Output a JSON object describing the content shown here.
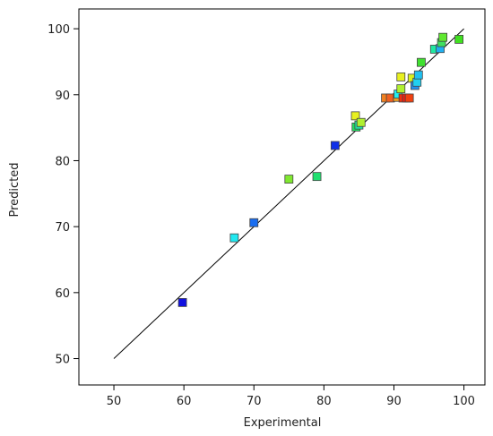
{
  "chart_data": {
    "type": "scatter",
    "xlabel": "Experimental",
    "ylabel": "Predicted",
    "xlim": [
      45,
      103
    ],
    "ylim": [
      46,
      103
    ],
    "x_ticks": [
      "50",
      "60",
      "70",
      "80",
      "90",
      "100"
    ],
    "y_ticks": [
      "50",
      "60",
      "70",
      "80",
      "90",
      "100"
    ],
    "grid": false,
    "legend": "none",
    "reference_line": {
      "from": [
        50,
        50
      ],
      "to": [
        100,
        100
      ],
      "color": "#000000"
    },
    "marker": "square",
    "marker_stroke": "#444444",
    "points": [
      {
        "x": 59.8,
        "y": 58.5,
        "color": "#1010e0"
      },
      {
        "x": 67.2,
        "y": 68.3,
        "color": "#20e8f0"
      },
      {
        "x": 70.0,
        "y": 70.6,
        "color": "#1a6ef0"
      },
      {
        "x": 75.0,
        "y": 77.2,
        "color": "#80e830"
      },
      {
        "x": 79.0,
        "y": 77.6,
        "color": "#20e070"
      },
      {
        "x": 81.6,
        "y": 82.3,
        "color": "#1030e8"
      },
      {
        "x": 84.5,
        "y": 86.8,
        "color": "#e8f020"
      },
      {
        "x": 84.6,
        "y": 85.1,
        "color": "#20e060"
      },
      {
        "x": 85.0,
        "y": 85.4,
        "color": "#20e0a0"
      },
      {
        "x": 85.3,
        "y": 85.8,
        "color": "#b0f030"
      },
      {
        "x": 88.8,
        "y": 89.5,
        "color": "#f08020"
      },
      {
        "x": 89.5,
        "y": 89.5,
        "color": "#f06020"
      },
      {
        "x": 90.5,
        "y": 89.6,
        "color": "#f0a020"
      },
      {
        "x": 90.6,
        "y": 90.1,
        "color": "#20f0f0"
      },
      {
        "x": 91.0,
        "y": 92.7,
        "color": "#e8f020"
      },
      {
        "x": 91.0,
        "y": 90.9,
        "color": "#b0f030"
      },
      {
        "x": 91.3,
        "y": 89.5,
        "color": "#f03010"
      },
      {
        "x": 91.8,
        "y": 89.5,
        "color": "#f02010"
      },
      {
        "x": 92.2,
        "y": 89.5,
        "color": "#f04010"
      },
      {
        "x": 92.6,
        "y": 92.5,
        "color": "#d8f020"
      },
      {
        "x": 93.0,
        "y": 91.4,
        "color": "#2090f0"
      },
      {
        "x": 93.3,
        "y": 91.9,
        "color": "#20d0f0"
      },
      {
        "x": 93.5,
        "y": 93.0,
        "color": "#20c0f0"
      },
      {
        "x": 93.9,
        "y": 94.9,
        "color": "#40e030"
      },
      {
        "x": 95.8,
        "y": 96.9,
        "color": "#20e8a0"
      },
      {
        "x": 96.6,
        "y": 97.0,
        "color": "#20b0f0"
      },
      {
        "x": 96.8,
        "y": 97.9,
        "color": "#40e060"
      },
      {
        "x": 97.0,
        "y": 98.7,
        "color": "#60e830"
      },
      {
        "x": 99.3,
        "y": 98.4,
        "color": "#40e020"
      }
    ]
  }
}
